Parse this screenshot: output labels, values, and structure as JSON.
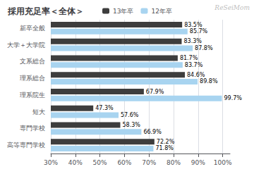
{
  "chart_data": {
    "type": "bar",
    "orientation": "horizontal",
    "title": "採用充足率＜全体＞",
    "annotations": [
      "ReSeiMom"
    ],
    "categories": [
      "新卒全般",
      "大学＋大学院",
      "文系総合",
      "理系総合",
      "理系院生",
      "短大",
      "専門学校",
      "高等専門学校"
    ],
    "series": [
      {
        "name": "13年卒",
        "color": "#3d3d3d",
        "values": [
          83.5,
          83.3,
          81.7,
          84.6,
          67.9,
          47.3,
          58.3,
          72.2
        ],
        "value_labels": [
          "83.5%",
          "83.3%",
          "81.7%",
          "84.6%",
          "67.9%",
          "47.3%",
          "58.3%",
          "72.2%"
        ]
      },
      {
        "name": "12年卒",
        "color": "#a8d4f0",
        "values": [
          85.7,
          87.8,
          83.7,
          89.8,
          99.7,
          57.6,
          66.9,
          71.8
        ],
        "value_labels": [
          "85.7%",
          "87.8%",
          "83.7%",
          "89.8%",
          "99.7%",
          "57.6%",
          "66.9%",
          "71.8%"
        ]
      }
    ],
    "xlim": [
      30,
      103
    ],
    "xticks": [
      {
        "value": 30,
        "label": "30%"
      },
      {
        "value": 40,
        "label": "40%"
      },
      {
        "value": 50,
        "label": "50%"
      },
      {
        "value": 60,
        "label": "60%"
      },
      {
        "value": 70,
        "label": "70%"
      },
      {
        "value": 80,
        "label": "80%"
      },
      {
        "value": 90,
        "label": "90%"
      },
      {
        "value": 100,
        "label": "100%"
      }
    ],
    "grid": true,
    "data_labels": true,
    "legend": "top"
  }
}
